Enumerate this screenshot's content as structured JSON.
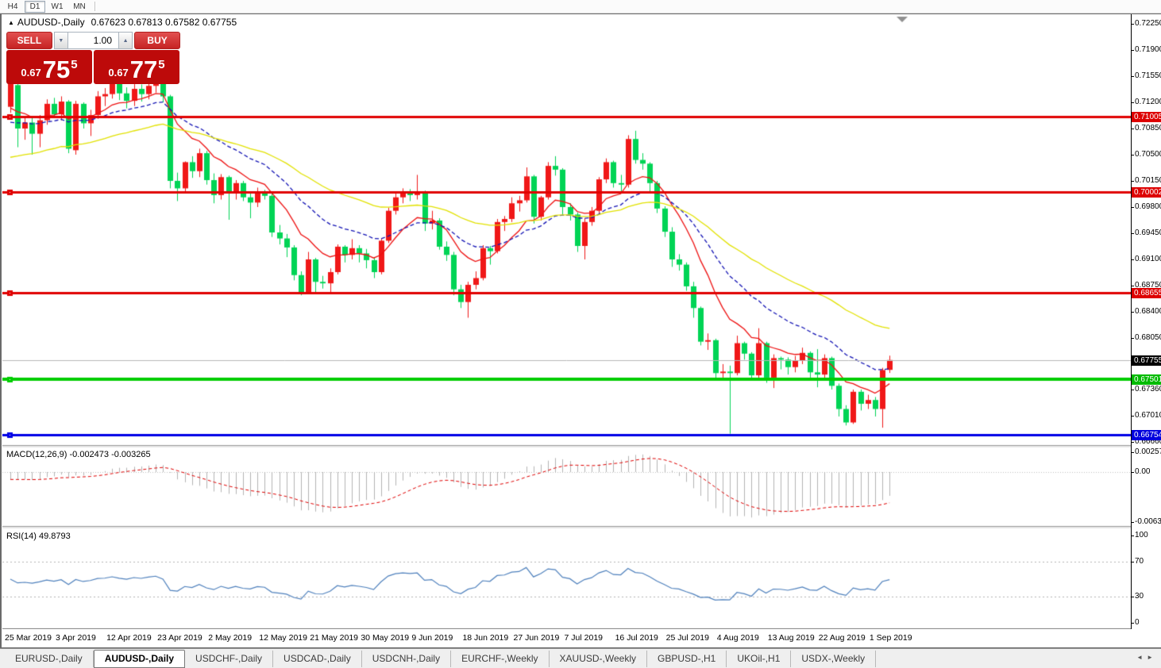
{
  "toolbar": {
    "buttons": [
      "H4",
      "D1",
      "W1",
      "MN"
    ],
    "active": "D1"
  },
  "quote": {
    "symbol": "AUDUSD-,Daily",
    "ohlc_text": "0.67623 0.67813 0.67582 0.67755"
  },
  "one_click": {
    "sell_label": "SELL",
    "buy_label": "BUY",
    "volume": "1.00",
    "sell_prefix": "0.67",
    "sell_big": "75",
    "sell_sup": "5",
    "buy_prefix": "0.67",
    "buy_big": "77",
    "buy_sup": "5"
  },
  "price_axis": {
    "ticks": [
      "0.72250",
      "0.71900",
      "0.71550",
      "0.71200",
      "0.70850",
      "0.70500",
      "0.70150",
      "0.69800",
      "0.69450",
      "0.69100",
      "0.68750",
      "0.68400",
      "0.68050",
      "0.67700",
      "0.67360",
      "0.67010",
      "0.66660"
    ],
    "badges": [
      {
        "text": "0.71005",
        "value": 0.71005,
        "color": "#dd0000"
      },
      {
        "text": "0.70002",
        "value": 0.70002,
        "color": "#dd0000"
      },
      {
        "text": "0.68655",
        "value": 0.68655,
        "color": "#dd0000"
      },
      {
        "text": "0.67501",
        "value": 0.67501,
        "color": "#00bb00"
      },
      {
        "text": "0.66754",
        "value": 0.66754,
        "color": "#0000dd"
      }
    ],
    "current_badge": {
      "text": "0.67755",
      "value": 0.67755,
      "color": "#000000"
    }
  },
  "macd_panel": {
    "name": "MACD(12,26,9)",
    "values_text": "-0.002473 -0.003265",
    "axis_ticks": [
      {
        "v": 0.002574,
        "t": "0.002574"
      },
      {
        "v": 0,
        "t": "0.00"
      },
      {
        "v": -0.006326,
        "t": "-0.006326"
      }
    ]
  },
  "rsi_panel": {
    "name": "RSI(14)",
    "value_text": "49.8793",
    "axis_ticks": [
      {
        "v": 100,
        "t": "100"
      },
      {
        "v": 70,
        "t": "70"
      },
      {
        "v": 30,
        "t": "30"
      },
      {
        "v": 0,
        "t": "0"
      }
    ]
  },
  "tabs": {
    "items": [
      "EURUSD-,Daily",
      "AUDUSD-,Daily",
      "USDCHF-,Daily",
      "USDCAD-,Daily",
      "USDCNH-,Daily",
      "EURCHF-,Weekly",
      "XAUUSD-,Weekly",
      "GBPUSD-,H1",
      "UKOil-,H1",
      "USDX-,Weekly"
    ],
    "active_index": 1
  },
  "chart_data": {
    "type": "candlestick",
    "title": "AUDUSD-,Daily",
    "timeframe": "D1",
    "last_bar": {
      "open": 0.67623,
      "high": 0.67813,
      "low": 0.67582,
      "close": 0.67755
    },
    "y_axis": {
      "top": 0.7225,
      "bottom": 0.6666
    },
    "x_labels": [
      "25 Mar 2019",
      "3 Apr 2019",
      "12 Apr 2019",
      "23 Apr 2019",
      "2 May 2019",
      "12 May 2019",
      "21 May 2019",
      "30 May 2019",
      "9 Jun 2019",
      "18 Jun 2019",
      "27 Jun 2019",
      "7 Jul 2019",
      "16 Jul 2019",
      "25 Jul 2019",
      "4 Aug 2019",
      "13 Aug 2019",
      "22 Aug 2019",
      "1 Sep 2019"
    ],
    "bars_per_label": 7,
    "bull_color": "#f01818",
    "bear_color": "#00d455",
    "horizontal_lines": [
      {
        "price": 0.71005,
        "color": "#e00000",
        "width": 3
      },
      {
        "price": 0.70002,
        "color": "#e00000",
        "width": 3
      },
      {
        "price": 0.68655,
        "color": "#e00000",
        "width": 3
      },
      {
        "price": 0.67501,
        "color": "#00cd00",
        "width": 4
      },
      {
        "price": 0.66754,
        "color": "#0000e6",
        "width": 3
      }
    ],
    "current_price_line": {
      "price": 0.67755,
      "color": "#b8b8b8"
    },
    "moving_averages": [
      {
        "period": 10,
        "color": "#ee1111",
        "style": "solid",
        "seed": 0.7105
      },
      {
        "period": 21,
        "color": "#1515b5",
        "style": "dash",
        "seed": 0.7088
      },
      {
        "period": 45,
        "color": "#e2e200",
        "style": "solid",
        "seed": 0.7042
      }
    ],
    "macd": {
      "fast": 12,
      "slow": 26,
      "signal": 9,
      "seed_fast": 0.709,
      "seed_slow": 0.7105,
      "hist_color": "#b4b4b4",
      "signal_color": "#e00000",
      "range": [
        -0.006326,
        0.002574
      ]
    },
    "rsi": {
      "period": 14,
      "color": "#4f81bd",
      "levels": [
        70,
        30
      ],
      "range": [
        0,
        100
      ]
    },
    "candles": [
      [
        0.7114,
        0.7148,
        0.7106,
        0.7146
      ],
      [
        0.7143,
        0.7147,
        0.706,
        0.7085
      ],
      [
        0.7085,
        0.7101,
        0.707,
        0.7093
      ],
      [
        0.7093,
        0.7099,
        0.705,
        0.7078
      ],
      [
        0.7078,
        0.7103,
        0.706,
        0.7096
      ],
      [
        0.7096,
        0.7124,
        0.709,
        0.7118
      ],
      [
        0.7118,
        0.7126,
        0.71,
        0.7104
      ],
      [
        0.7104,
        0.7128,
        0.7096,
        0.7121
      ],
      [
        0.7121,
        0.7123,
        0.7052,
        0.7058
      ],
      [
        0.7056,
        0.7122,
        0.705,
        0.7118
      ],
      [
        0.7118,
        0.712,
        0.7085,
        0.7092
      ],
      [
        0.7092,
        0.711,
        0.7075,
        0.7103
      ],
      [
        0.7103,
        0.7135,
        0.7098,
        0.7128
      ],
      [
        0.7128,
        0.7139,
        0.7115,
        0.7131
      ],
      [
        0.7131,
        0.715,
        0.7125,
        0.7146
      ],
      [
        0.7146,
        0.7148,
        0.7123,
        0.7132
      ],
      [
        0.7132,
        0.714,
        0.7112,
        0.7122
      ],
      [
        0.7122,
        0.7145,
        0.7115,
        0.7138
      ],
      [
        0.7138,
        0.7144,
        0.7121,
        0.7131
      ],
      [
        0.7131,
        0.715,
        0.7124,
        0.7142
      ],
      [
        0.7142,
        0.7153,
        0.7133,
        0.715
      ],
      [
        0.715,
        0.7152,
        0.712,
        0.7128
      ],
      [
        0.7128,
        0.713,
        0.7005,
        0.7015
      ],
      [
        0.7015,
        0.7026,
        0.6988,
        0.7005
      ],
      [
        0.7005,
        0.7041,
        0.7,
        0.704
      ],
      [
        0.704,
        0.7048,
        0.7019,
        0.7028
      ],
      [
        0.7028,
        0.7058,
        0.702,
        0.7052
      ],
      [
        0.7052,
        0.7055,
        0.701,
        0.7016
      ],
      [
        0.7016,
        0.7025,
        0.6985,
        0.6996
      ],
      [
        0.6996,
        0.7024,
        0.699,
        0.702
      ],
      [
        0.702,
        0.7022,
        0.6963,
        0.6998
      ],
      [
        0.6998,
        0.7016,
        0.699,
        0.7012
      ],
      [
        0.7012,
        0.7015,
        0.6988,
        0.6993
      ],
      [
        0.6993,
        0.7,
        0.6965,
        0.6986
      ],
      [
        0.6986,
        0.7006,
        0.698,
        0.7001
      ],
      [
        0.7001,
        0.7003,
        0.699,
        0.6995
      ],
      [
        0.6995,
        0.6998,
        0.694,
        0.6946
      ],
      [
        0.6946,
        0.6956,
        0.693,
        0.6938
      ],
      [
        0.6938,
        0.6944,
        0.6913,
        0.6926
      ],
      [
        0.6926,
        0.6929,
        0.6882,
        0.6889
      ],
      [
        0.6889,
        0.6894,
        0.6862,
        0.6866
      ],
      [
        0.6866,
        0.692,
        0.6864,
        0.691
      ],
      [
        0.691,
        0.6912,
        0.6865,
        0.688
      ],
      [
        0.688,
        0.6888,
        0.6871,
        0.6878
      ],
      [
        0.6878,
        0.6898,
        0.6865,
        0.6893
      ],
      [
        0.6893,
        0.693,
        0.689,
        0.6927
      ],
      [
        0.6927,
        0.6929,
        0.6906,
        0.6916
      ],
      [
        0.6916,
        0.6937,
        0.691,
        0.6925
      ],
      [
        0.6925,
        0.6929,
        0.6906,
        0.6918
      ],
      [
        0.6918,
        0.6924,
        0.6898,
        0.6909
      ],
      [
        0.6909,
        0.6913,
        0.6885,
        0.6893
      ],
      [
        0.6893,
        0.6938,
        0.689,
        0.6935
      ],
      [
        0.6935,
        0.6979,
        0.6932,
        0.6975
      ],
      [
        0.6975,
        0.7,
        0.697,
        0.6993
      ],
      [
        0.6993,
        0.7005,
        0.6985,
        0.7
      ],
      [
        0.7,
        0.7004,
        0.6988,
        0.6996
      ],
      [
        0.6996,
        0.7023,
        0.699,
        0.7
      ],
      [
        0.7,
        0.7002,
        0.6948,
        0.6958
      ],
      [
        0.6958,
        0.6975,
        0.695,
        0.6962
      ],
      [
        0.6962,
        0.6965,
        0.6923,
        0.6927
      ],
      [
        0.6927,
        0.6934,
        0.6908,
        0.6916
      ],
      [
        0.6916,
        0.692,
        0.6862,
        0.687
      ],
      [
        0.687,
        0.6876,
        0.6845,
        0.6853
      ],
      [
        0.6853,
        0.688,
        0.6832,
        0.6876
      ],
      [
        0.6876,
        0.6894,
        0.687,
        0.6885
      ],
      [
        0.6885,
        0.6929,
        0.6882,
        0.6925
      ],
      [
        0.6925,
        0.6928,
        0.6903,
        0.6921
      ],
      [
        0.6921,
        0.6964,
        0.6918,
        0.696
      ],
      [
        0.696,
        0.6968,
        0.6948,
        0.6964
      ],
      [
        0.6964,
        0.6993,
        0.696,
        0.6985
      ],
      [
        0.6985,
        0.6995,
        0.6974,
        0.6989
      ],
      [
        0.6989,
        0.7033,
        0.6986,
        0.7021
      ],
      [
        0.7021,
        0.7023,
        0.6958,
        0.6967
      ],
      [
        0.6967,
        0.6995,
        0.6962,
        0.6993
      ],
      [
        0.6993,
        0.704,
        0.699,
        0.7035
      ],
      [
        0.7035,
        0.7048,
        0.7022,
        0.703
      ],
      [
        0.703,
        0.7032,
        0.697,
        0.698
      ],
      [
        0.698,
        0.6985,
        0.6962,
        0.697
      ],
      [
        0.697,
        0.6973,
        0.692,
        0.6928
      ],
      [
        0.6928,
        0.6965,
        0.691,
        0.696
      ],
      [
        0.696,
        0.698,
        0.6955,
        0.6975
      ],
      [
        0.6975,
        0.702,
        0.6972,
        0.7017
      ],
      [
        0.7017,
        0.7045,
        0.7012,
        0.704
      ],
      [
        0.704,
        0.7042,
        0.7006,
        0.7012
      ],
      [
        0.7012,
        0.7023,
        0.7,
        0.701
      ],
      [
        0.701,
        0.7076,
        0.7006,
        0.7071
      ],
      [
        0.7071,
        0.7082,
        0.7038,
        0.7043
      ],
      [
        0.7043,
        0.7052,
        0.703,
        0.7038
      ],
      [
        0.7038,
        0.704,
        0.7,
        0.7012
      ],
      [
        0.7012,
        0.7015,
        0.6972,
        0.6978
      ],
      [
        0.6978,
        0.6981,
        0.694,
        0.6947
      ],
      [
        0.6947,
        0.6953,
        0.69,
        0.691
      ],
      [
        0.691,
        0.6917,
        0.6895,
        0.6903
      ],
      [
        0.6903,
        0.6906,
        0.6868,
        0.6874
      ],
      [
        0.6874,
        0.688,
        0.6832,
        0.6845
      ],
      [
        0.6845,
        0.6847,
        0.6795,
        0.68
      ],
      [
        0.68,
        0.6811,
        0.6789,
        0.6802
      ],
      [
        0.6802,
        0.6804,
        0.6748,
        0.6758
      ],
      [
        0.6758,
        0.677,
        0.6752,
        0.676
      ],
      [
        0.676,
        0.6768,
        0.6677,
        0.6758
      ],
      [
        0.6758,
        0.6808,
        0.6755,
        0.6798
      ],
      [
        0.6798,
        0.68,
        0.6776,
        0.6784
      ],
      [
        0.6784,
        0.6786,
        0.6748,
        0.6755
      ],
      [
        0.6755,
        0.6818,
        0.675,
        0.6798
      ],
      [
        0.6798,
        0.68,
        0.6745,
        0.6752
      ],
      [
        0.6752,
        0.6783,
        0.6738,
        0.6778
      ],
      [
        0.6778,
        0.678,
        0.6763,
        0.6776
      ],
      [
        0.6776,
        0.6779,
        0.6756,
        0.6766
      ],
      [
        0.6766,
        0.6781,
        0.6759,
        0.6775
      ],
      [
        0.6775,
        0.6792,
        0.677,
        0.6785
      ],
      [
        0.6785,
        0.6787,
        0.6752,
        0.6759
      ],
      [
        0.6759,
        0.679,
        0.6739,
        0.6756
      ],
      [
        0.6756,
        0.6783,
        0.675,
        0.6778
      ],
      [
        0.6778,
        0.678,
        0.6736,
        0.6741
      ],
      [
        0.6741,
        0.6744,
        0.67,
        0.671
      ],
      [
        0.671,
        0.6715,
        0.6688,
        0.6692
      ],
      [
        0.6692,
        0.6736,
        0.669,
        0.6733
      ],
      [
        0.6733,
        0.6736,
        0.6708,
        0.6717
      ],
      [
        0.6717,
        0.6729,
        0.671,
        0.6722
      ],
      [
        0.6722,
        0.6726,
        0.67,
        0.671
      ],
      [
        0.671,
        0.6765,
        0.6685,
        0.6762
      ],
      [
        0.67623,
        0.67813,
        0.67582,
        0.67755
      ]
    ]
  }
}
